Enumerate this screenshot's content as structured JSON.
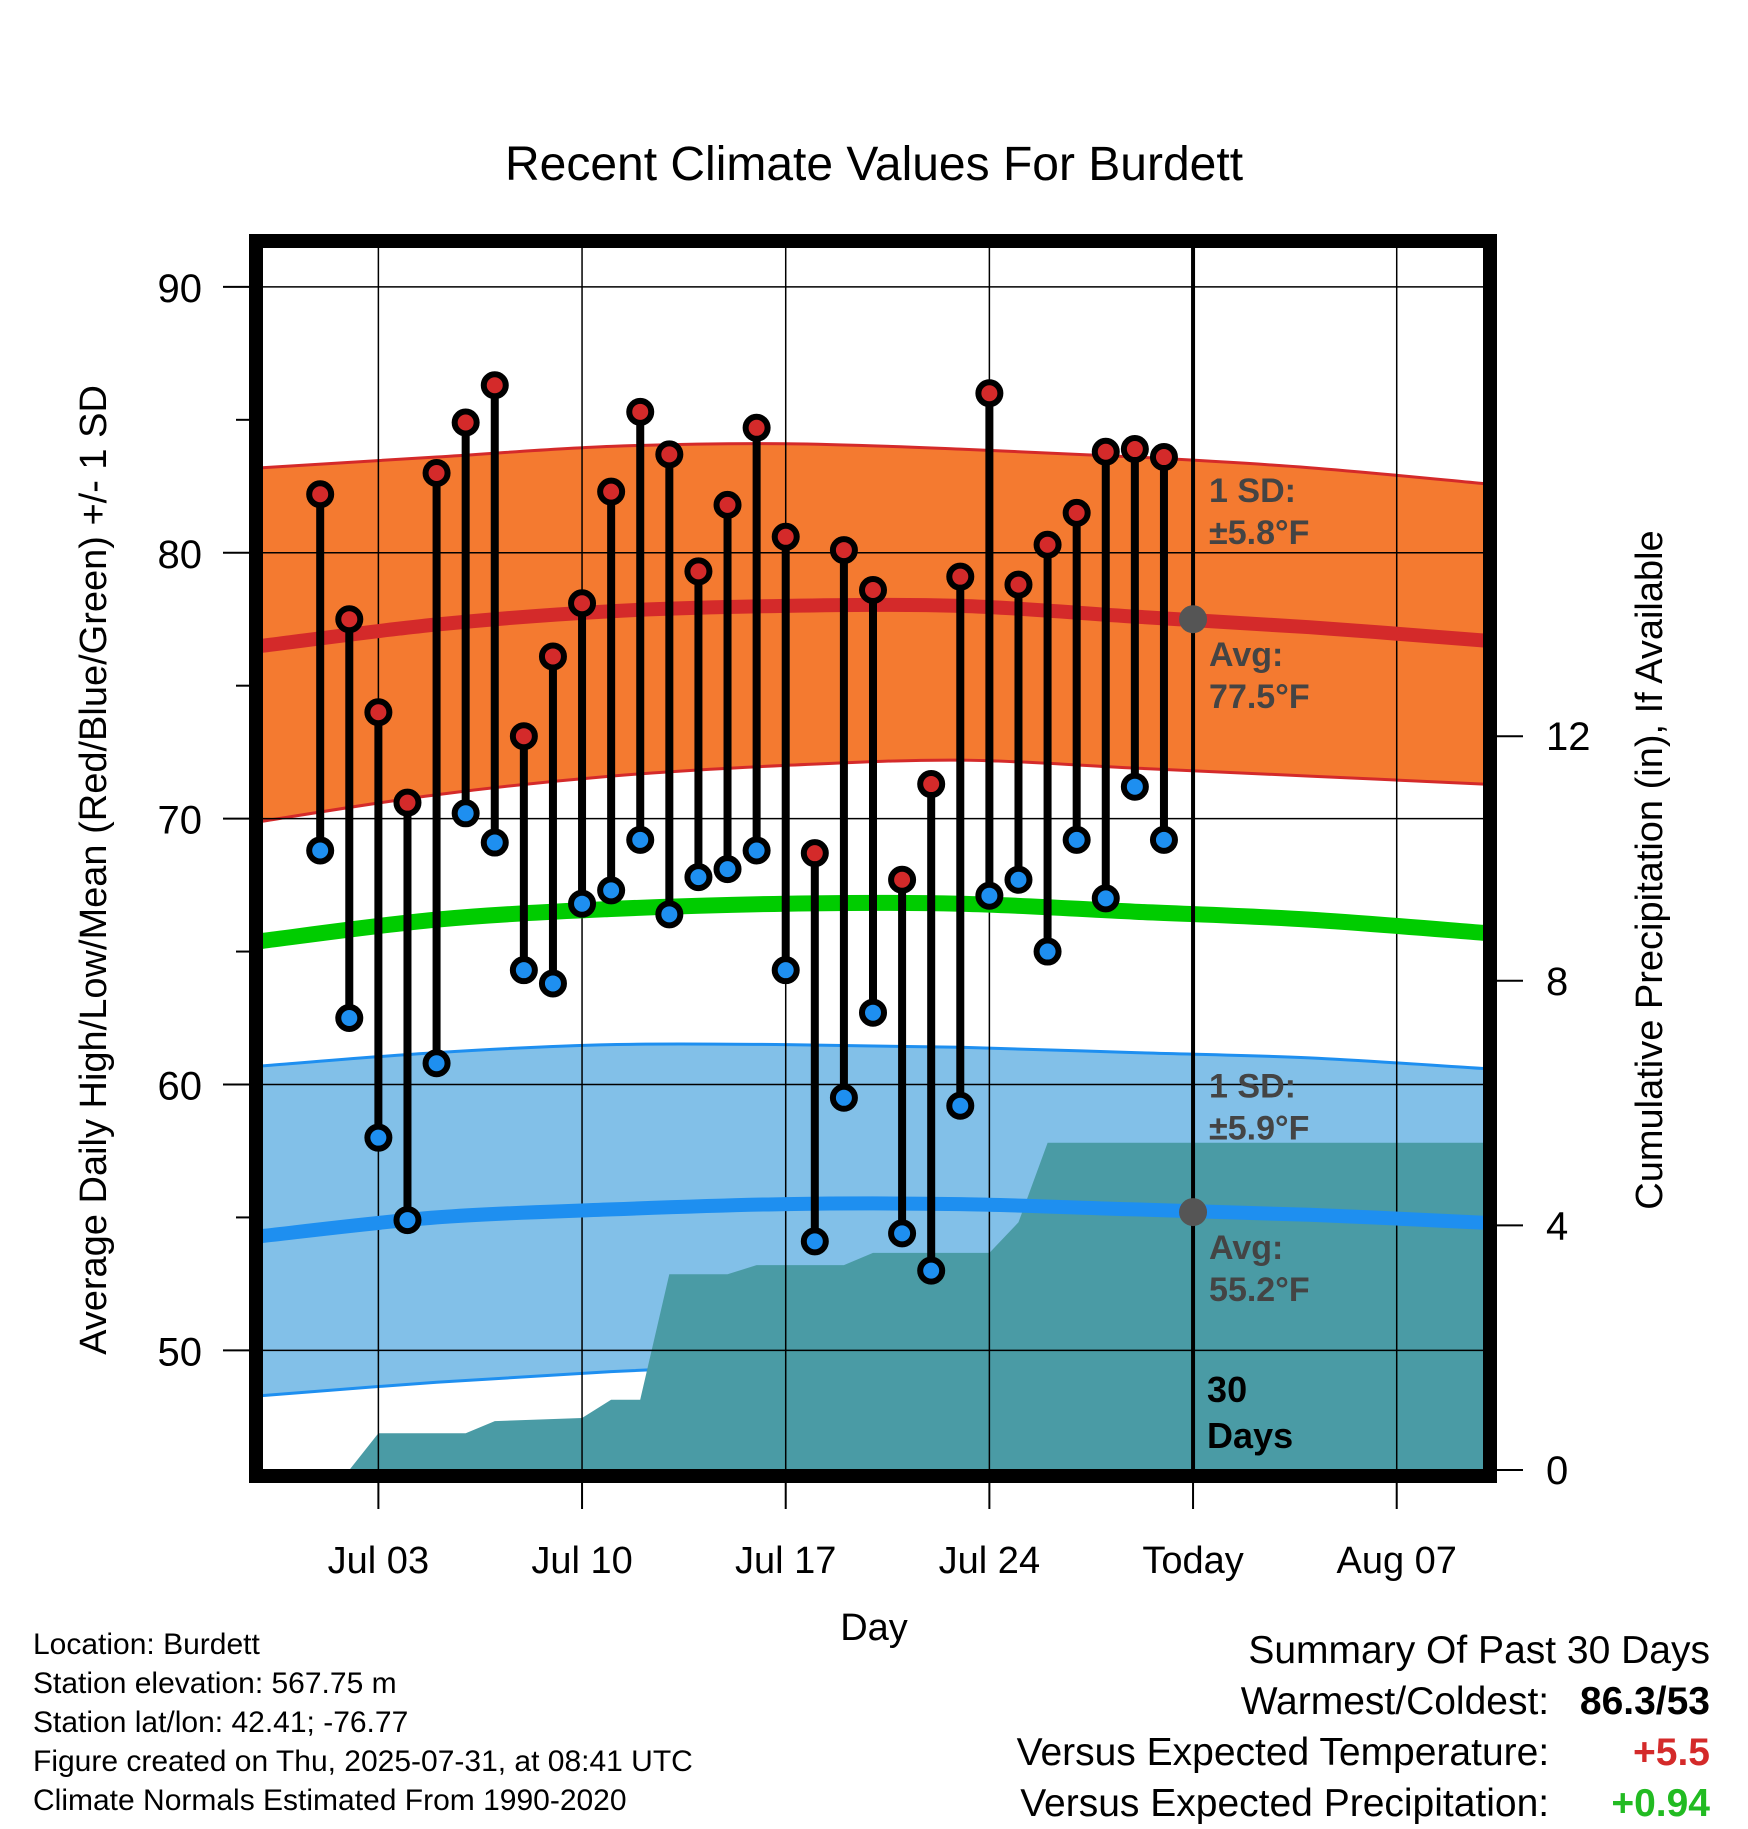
{
  "chart_data": {
    "type": "line",
    "title": "Recent Climate Values For Burdett",
    "xlabel": "Day",
    "ylabel": "Average Daily High/Low/Mean (Red/Blue/Green) +/- 1 SD",
    "y2label": "Cumulative Precipitation (in), If Available",
    "ylim": [
      45.5,
      91.5
    ],
    "y2lim": [
      0,
      20
    ],
    "y_ticks": [
      50,
      60,
      70,
      80,
      90
    ],
    "y2_ticks": [
      0,
      4,
      8,
      12
    ],
    "x_range": [
      "2025-06-29",
      "2025-08-10"
    ],
    "x_ticks": [
      {
        "date": "2025-07-03",
        "label": "Jul 03"
      },
      {
        "date": "2025-07-10",
        "label": "Jul 10"
      },
      {
        "date": "2025-07-17",
        "label": "Jul 17"
      },
      {
        "date": "2025-07-24",
        "label": "Jul 24"
      },
      {
        "date": "2025-07-31",
        "label": "Today"
      },
      {
        "date": "2025-08-07",
        "label": "Aug 07"
      }
    ],
    "grid": true,
    "today": "2025-07-31",
    "days_label": "30\nDays",
    "colors": {
      "high": "#d42a2a",
      "high_band": "#f47a30",
      "low": "#1e8ff0",
      "low_band": "#82c0e8",
      "mean": "#00cc00",
      "precip": "#4a9ba5",
      "avg_marker": "#555555"
    },
    "normal_high": {
      "x": [
        "2025-06-29",
        "2025-07-05",
        "2025-07-11",
        "2025-07-17",
        "2025-07-23",
        "2025-07-29",
        "2025-08-04",
        "2025-08-10"
      ],
      "mean": [
        76.5,
        77.3,
        77.8,
        78.0,
        78.0,
        77.6,
        77.2,
        76.7
      ],
      "upper": [
        83.2,
        83.6,
        84.0,
        84.1,
        83.9,
        83.6,
        83.2,
        82.6
      ],
      "lower": [
        69.9,
        70.9,
        71.6,
        72.0,
        72.2,
        71.9,
        71.6,
        71.3
      ],
      "annotation": {
        "sd": "1 SD:",
        "sd_value": "±5.8°F",
        "avg": "Avg:",
        "avg_value": "77.5°F",
        "today_value": 77.5
      }
    },
    "normal_low": {
      "x": [
        "2025-06-29",
        "2025-07-05",
        "2025-07-11",
        "2025-07-17",
        "2025-07-23",
        "2025-07-29",
        "2025-08-04",
        "2025-08-10"
      ],
      "mean": [
        54.3,
        55.0,
        55.3,
        55.5,
        55.5,
        55.3,
        55.1,
        54.8
      ],
      "upper": [
        60.7,
        61.2,
        61.5,
        61.5,
        61.4,
        61.2,
        61.0,
        60.6
      ],
      "lower": [
        48.3,
        48.8,
        49.2,
        49.5,
        49.7,
        49.7,
        49.5,
        49.2
      ],
      "annotation": {
        "sd": "1 SD:",
        "sd_value": "±5.9°F",
        "avg": "Avg:",
        "avg_value": "55.2°F",
        "today_value": 55.2
      }
    },
    "normal_mean": {
      "x": [
        "2025-06-29",
        "2025-07-05",
        "2025-07-11",
        "2025-07-17",
        "2025-07-23",
        "2025-07-29",
        "2025-08-04",
        "2025-08-10"
      ],
      "values": [
        65.4,
        66.2,
        66.6,
        66.8,
        66.8,
        66.5,
        66.2,
        65.7
      ]
    },
    "daily": [
      {
        "date": "2025-07-01",
        "high": 82.2,
        "low": 68.8
      },
      {
        "date": "2025-07-02",
        "high": 77.5,
        "low": 62.5
      },
      {
        "date": "2025-07-03",
        "high": 74.0,
        "low": 58.0
      },
      {
        "date": "2025-07-04",
        "high": 70.6,
        "low": 54.9
      },
      {
        "date": "2025-07-05",
        "high": 83.0,
        "low": 60.8
      },
      {
        "date": "2025-07-06",
        "high": 84.9,
        "low": 70.2
      },
      {
        "date": "2025-07-07",
        "high": 86.3,
        "low": 69.1
      },
      {
        "date": "2025-07-08",
        "high": 73.1,
        "low": 64.3
      },
      {
        "date": "2025-07-09",
        "high": 76.1,
        "low": 63.8
      },
      {
        "date": "2025-07-10",
        "high": 78.1,
        "low": 66.8
      },
      {
        "date": "2025-07-11",
        "high": 82.3,
        "low": 67.3
      },
      {
        "date": "2025-07-12",
        "high": 85.3,
        "low": 69.2
      },
      {
        "date": "2025-07-13",
        "high": 83.7,
        "low": 66.4
      },
      {
        "date": "2025-07-14",
        "high": 79.3,
        "low": 67.8
      },
      {
        "date": "2025-07-15",
        "high": 81.8,
        "low": 68.1
      },
      {
        "date": "2025-07-16",
        "high": 84.7,
        "low": 68.8
      },
      {
        "date": "2025-07-17",
        "high": 80.6,
        "low": 64.3
      },
      {
        "date": "2025-07-18",
        "high": 68.7,
        "low": 54.1
      },
      {
        "date": "2025-07-19",
        "high": 80.1,
        "low": 59.5
      },
      {
        "date": "2025-07-20",
        "high": 78.6,
        "low": 62.7
      },
      {
        "date": "2025-07-21",
        "high": 67.7,
        "low": 54.4
      },
      {
        "date": "2025-07-22",
        "high": 71.3,
        "low": 53.0
      },
      {
        "date": "2025-07-23",
        "high": 79.1,
        "low": 59.2
      },
      {
        "date": "2025-07-24",
        "high": 86.0,
        "low": 67.1
      },
      {
        "date": "2025-07-25",
        "high": 78.8,
        "low": 67.7
      },
      {
        "date": "2025-07-26",
        "high": 80.3,
        "low": 65.0
      },
      {
        "date": "2025-07-27",
        "high": 81.5,
        "low": 69.2
      },
      {
        "date": "2025-07-28",
        "high": 83.8,
        "low": 67.0
      },
      {
        "date": "2025-07-29",
        "high": 83.9,
        "low": 71.2
      },
      {
        "date": "2025-07-30",
        "high": 83.6,
        "low": 69.2
      }
    ],
    "precipitation": {
      "x": [
        "2025-06-29",
        "2025-07-01",
        "2025-07-02",
        "2025-07-03",
        "2025-07-06",
        "2025-07-07",
        "2025-07-10",
        "2025-07-11",
        "2025-07-12",
        "2025-07-13",
        "2025-07-15",
        "2025-07-16",
        "2025-07-19",
        "2025-07-20",
        "2025-07-24",
        "2025-07-25",
        "2025-07-26",
        "2025-08-10"
      ],
      "values": [
        0,
        0,
        0,
        0.6,
        0.6,
        0.8,
        0.85,
        1.15,
        1.15,
        3.2,
        3.2,
        3.35,
        3.35,
        3.55,
        3.55,
        4.05,
        5.35,
        5.35
      ]
    }
  },
  "info": {
    "location": "Location: Burdett",
    "elevation": "Station elevation: 567.75 m",
    "latlon": "Station lat/lon: 42.41; -76.77",
    "created": "Figure created on Thu, 2025-07-31, at 08:41 UTC",
    "normals": "Climate Normals Estimated From 1990-2020"
  },
  "summary": {
    "title": "Summary Of Past 30 Days",
    "warmest_label": "Warmest/Coldest:",
    "warmest_value": "86.3/53",
    "temp_label": "Versus Expected Temperature:",
    "temp_value": "+5.5",
    "precip_label": "Versus Expected Precipitation:",
    "precip_value": "+0.94",
    "temp_color": "#d42a2a",
    "precip_color": "#22bb22"
  }
}
